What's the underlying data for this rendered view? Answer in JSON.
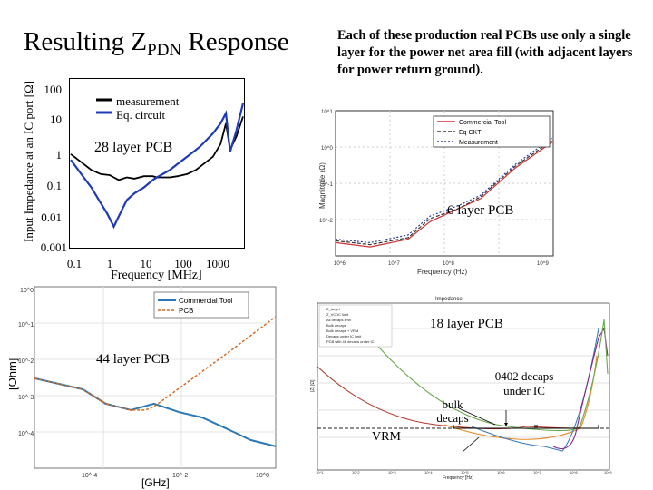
{
  "slide": {
    "title_main": "Resulting Z",
    "title_sub": "PDN",
    "title_end": " Response",
    "right_note": "Each of these production real PCBs use only a single layer for the power net area fill (with adjacent layers for power return ground).",
    "label_28": "28 layer PCB",
    "label_6": "6 layer PCB",
    "label_18": "18 layer PCB",
    "label_44": "44 layer PCB",
    "label_decaps": "0402 decaps under IC",
    "label_bulk": "bulk decaps",
    "label_vrm": "VRM"
  },
  "chart_data": [
    {
      "id": "28-layer",
      "type": "line",
      "ylabel": "Input Impedance at an IC port [Ω]",
      "xlabel": "Frequency [MHz]",
      "xscale": "log",
      "yscale": "log",
      "xlim": [
        0.1,
        1000
      ],
      "ylim": [
        0.001,
        100
      ],
      "yticks": [
        "100",
        "10",
        "1",
        "0.1",
        "0.01",
        "0.001"
      ],
      "xticks": [
        "0.1",
        "1",
        "10",
        "100",
        "1000"
      ],
      "legend": [
        "measurement",
        "Eq. circuit"
      ],
      "legend_position": "top-right",
      "colors": {
        "measurement": "#000000",
        "eq": "#1f3ab5"
      },
      "series": [
        {
          "name": "measurement",
          "x": [
            0.1,
            0.2,
            0.3,
            0.5,
            0.8,
            1,
            1.3,
            2,
            3,
            5,
            8,
            10,
            20,
            30,
            50,
            80,
            100,
            200,
            300,
            400,
            500,
            700,
            1000
          ],
          "y": [
            0.6,
            0.3,
            0.2,
            0.15,
            0.14,
            0.12,
            0.1,
            0.12,
            0.11,
            0.13,
            0.13,
            0.12,
            0.12,
            0.13,
            0.15,
            0.2,
            0.25,
            0.5,
            1.2,
            5,
            0.8,
            2,
            8
          ]
        },
        {
          "name": "Eq. circuit",
          "x": [
            0.1,
            0.2,
            0.3,
            0.5,
            0.7,
            1,
            1.5,
            2,
            3,
            5,
            8,
            10,
            20,
            30,
            50,
            80,
            100,
            200,
            300,
            400,
            500,
            700,
            1000
          ],
          "y": [
            0.4,
            0.12,
            0.06,
            0.02,
            0.01,
            0.004,
            0.012,
            0.025,
            0.04,
            0.06,
            0.1,
            0.12,
            0.2,
            0.3,
            0.5,
            0.8,
            1,
            2.5,
            5,
            10,
            0.7,
            3,
            20
          ]
        }
      ]
    },
    {
      "id": "6-layer",
      "type": "line",
      "xlabel": "Frequency (Hz)",
      "ylabel": "Magnitude (Ω)",
      "xscale": "log",
      "yscale": "log",
      "xticks": [
        "10^6",
        "10^7",
        "10^8",
        "10^9"
      ],
      "yticks": [
        "10^1",
        "10^0",
        "10^-1",
        "10^-2"
      ],
      "legend": [
        "Commercial Tool",
        "Eq CKT",
        "Measurement"
      ],
      "series": [
        {
          "name": "Commercial Tool",
          "x": [
            1000000.0,
            3000000.0,
            10000000.0,
            20000000.0,
            50000000.0,
            100000000.0,
            300000000.0,
            1000000000.0
          ],
          "y": [
            0.01,
            0.008,
            0.012,
            0.03,
            0.06,
            0.1,
            0.5,
            2
          ]
        },
        {
          "name": "Eq CKT",
          "x": [
            1000000.0,
            3000000.0,
            10000000.0,
            20000000.0,
            50000000.0,
            100000000.0,
            300000000.0,
            1000000000.0
          ],
          "y": [
            0.011,
            0.009,
            0.013,
            0.035,
            0.06,
            0.11,
            0.55,
            2.2
          ]
        },
        {
          "name": "Measurement",
          "x": [
            1000000.0,
            3000000.0,
            10000000.0,
            20000000.0,
            50000000.0,
            100000000.0,
            300000000.0,
            1000000000.0
          ],
          "y": [
            0.012,
            0.01,
            0.015,
            0.04,
            0.07,
            0.12,
            0.6,
            2.5
          ]
        }
      ]
    },
    {
      "id": "44-layer",
      "type": "line",
      "xlabel": "[GHz]",
      "ylabel": "[Ohm]",
      "xscale": "log",
      "yscale": "log",
      "xticks": [
        "10^-4",
        "10^-2",
        "10^0"
      ],
      "yticks": [
        "10^0",
        "10^-1",
        "10^-2",
        "10^-3",
        "10^-4"
      ],
      "legend": [
        "Commercial Tool",
        "PCB"
      ],
      "legend_position": "top-right",
      "series": [
        {
          "name": "Commercial Tool",
          "x": [
            1e-05,
            0.0001,
            0.0003,
            0.001,
            0.003,
            0.01,
            0.03,
            0.1,
            0.3,
            1
          ],
          "y": [
            0.003,
            0.0015,
            0.0006,
            0.0004,
            0.0006,
            0.00035,
            0.00025,
            0.00012,
            6e-05,
            4e-05
          ]
        },
        {
          "name": "PCB",
          "x": [
            1e-05,
            0.0001,
            0.0003,
            0.001,
            0.002,
            0.003,
            0.01,
            0.1,
            1
          ],
          "y": [
            0.003,
            0.0015,
            0.0006,
            0.0004,
            0.0004,
            0.0005,
            0.0016,
            0.015,
            0.15
          ]
        }
      ]
    },
    {
      "id": "18-layer",
      "type": "line",
      "title": "Impedance",
      "xlabel": "Frequency [Hz]",
      "ylabel": "|Z| [Ω]",
      "xscale": "log",
      "yscale": "log",
      "xticks": [
        "10^1",
        "10^2",
        "10^3",
        "10^4",
        "10^5",
        "10^6",
        "10^7",
        "10^8",
        "10^9"
      ],
      "legend": [
        "Z_target",
        "Z_VCDC limit",
        "All decaps limit",
        "Bulk decaps",
        "Bulk decaps + VRM",
        "Decaps under IC limit",
        "PCB with 46 decaps under IC"
      ],
      "series": []
    }
  ]
}
